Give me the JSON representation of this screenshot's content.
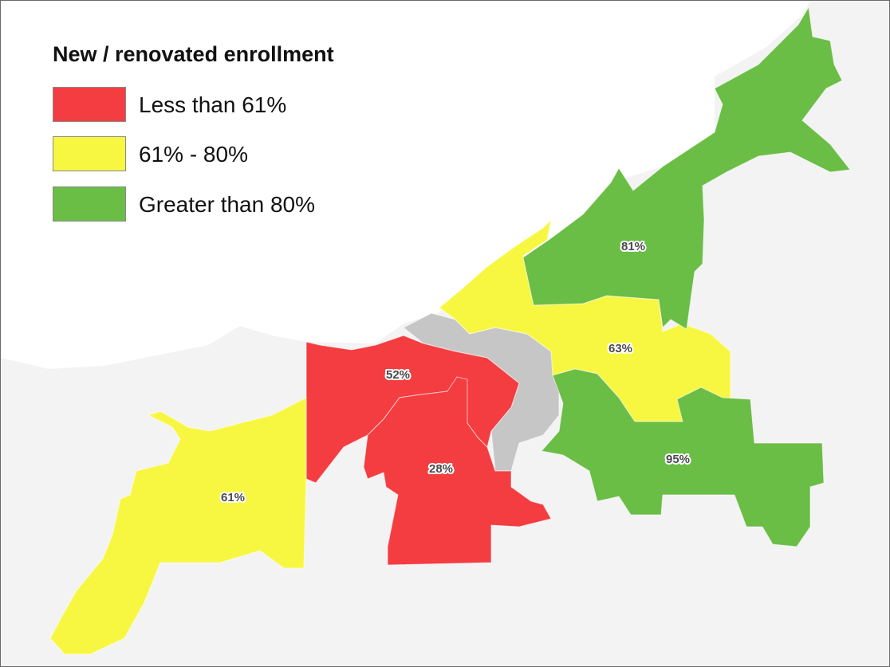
{
  "legend": {
    "title": "New / renovated enrollment",
    "items": [
      {
        "label": "Less than 61%",
        "color": "#f43d41"
      },
      {
        "label": "61% - 80%",
        "color": "#f7f742"
      },
      {
        "label": "Greater than 80%",
        "color": "#6abd45"
      }
    ]
  },
  "colors": {
    "land": "#f3f3f3",
    "water": "#ffffff",
    "no_data": "#c6c6c6"
  },
  "regions": [
    {
      "id": "northeast",
      "value": "81%",
      "category": "Greater than 80%",
      "color": "#6abd45"
    },
    {
      "id": "east",
      "value": "63%",
      "category": "61% - 80%",
      "color": "#f7f742"
    },
    {
      "id": "southeast",
      "value": "95%",
      "category": "Greater than 80%",
      "color": "#6abd45"
    },
    {
      "id": "central-west",
      "value": "52%",
      "category": "Less than 61%",
      "color": "#f43d41"
    },
    {
      "id": "south-central",
      "value": "28%",
      "category": "Less than 61%",
      "color": "#f43d41"
    },
    {
      "id": "west",
      "value": "61%",
      "category": "61% - 80%",
      "color": "#f7f742"
    },
    {
      "id": "downtown",
      "value": "",
      "category": "",
      "color": "#c6c6c6"
    }
  ]
}
